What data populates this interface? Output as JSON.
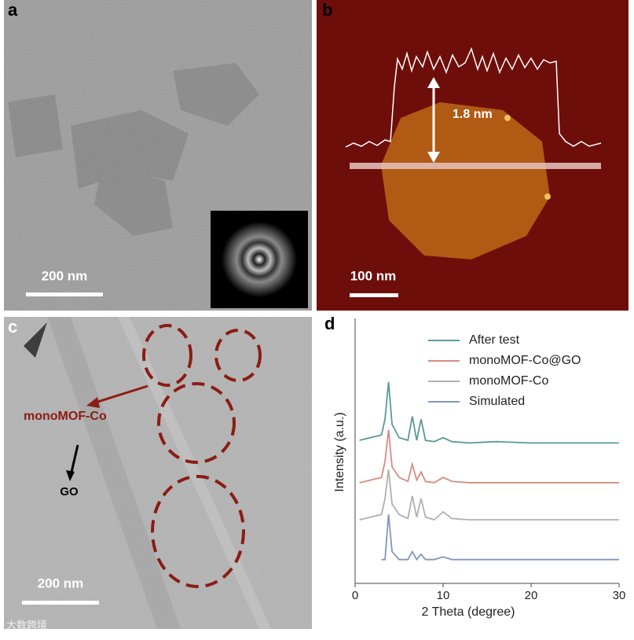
{
  "panels": {
    "a": {
      "label": "a",
      "scale_bar": "200 nm"
    },
    "b": {
      "label": "b",
      "height": "1.8 nm",
      "scale_bar": "100 nm"
    },
    "c": {
      "label": "c",
      "annotations": [
        "monoMOF-Co",
        "GO"
      ],
      "scale_bar": "200 nm"
    }
  },
  "watermark": "大数跨境",
  "chart_data": {
    "type": "line",
    "panel_label": "d",
    "x_label": "2 Theta (degree)",
    "y_label": "Intensity (a.u.)",
    "x": [
      0.5,
      3,
      3.4,
      3.8,
      4.2,
      5,
      6,
      6.5,
      7,
      7.5,
      8,
      9,
      10,
      11,
      13,
      16,
      20,
      30
    ],
    "series": [
      {
        "name": "After test",
        "color": "#5a9a96",
        "values": [
          54,
          56,
          62,
          76,
          60,
          55,
          54,
          63,
          54,
          62,
          54,
          53.5,
          55,
          53.5,
          53,
          53.5,
          53,
          53
        ]
      },
      {
        "name": "monoMOF-Co@GO",
        "color": "#d98b80",
        "values": [
          38,
          40,
          46,
          58,
          44,
          40,
          38.5,
          45,
          39,
          42,
          38.5,
          38,
          40,
          38.5,
          38,
          38,
          38,
          38
        ]
      },
      {
        "name": "monoMOF-Co",
        "color": "#b0b0b0",
        "values": [
          24,
          26,
          32,
          43,
          30,
          26,
          24.5,
          33,
          25,
          32,
          25,
          24,
          27,
          24.5,
          24,
          24,
          24,
          24
        ]
      },
      {
        "name": "Simulated",
        "color": "#8096c0",
        "values": [
          null,
          9,
          9,
          26,
          12,
          9,
          9,
          12,
          9,
          11,
          9,
          9,
          10,
          9,
          9,
          9,
          9,
          9
        ]
      }
    ],
    "xlim": [
      0,
      30
    ],
    "xticks": [
      0,
      10,
      20,
      30
    ],
    "ylim": [
      0,
      100
    ]
  }
}
